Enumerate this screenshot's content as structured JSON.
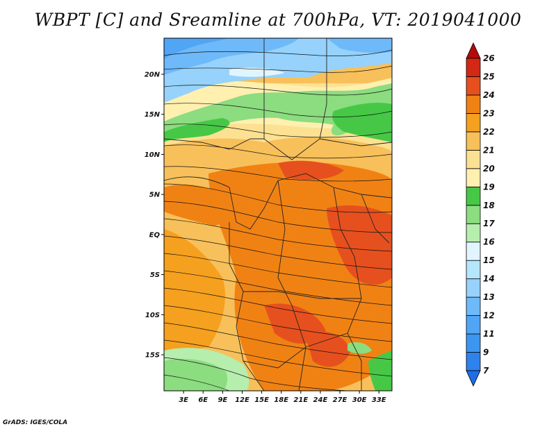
{
  "title": "WBPT [C] and Sreamline at 700hPa, VT: 2019041000",
  "credit": "GrADS: IGES/COLA",
  "map": {
    "lat_range": [
      -19.5,
      24.5
    ],
    "lon_range": [
      0,
      35
    ],
    "lat_ticks": [
      {
        "value": 20,
        "label": "20N"
      },
      {
        "value": 15,
        "label": "15N"
      },
      {
        "value": 10,
        "label": "10N"
      },
      {
        "value": 5,
        "label": "5N"
      },
      {
        "value": 0,
        "label": "EQ"
      },
      {
        "value": -5,
        "label": "5S"
      },
      {
        "value": -10,
        "label": "10S"
      },
      {
        "value": -15,
        "label": "15S"
      }
    ],
    "lon_ticks": [
      {
        "value": 3,
        "label": "3E"
      },
      {
        "value": 6,
        "label": "6E"
      },
      {
        "value": 9,
        "label": "9E"
      },
      {
        "value": 12,
        "label": "12E"
      },
      {
        "value": 15,
        "label": "15E"
      },
      {
        "value": 18,
        "label": "18E"
      },
      {
        "value": 21,
        "label": "21E"
      },
      {
        "value": 24,
        "label": "24E"
      },
      {
        "value": 27,
        "label": "27E"
      },
      {
        "value": 30,
        "label": "30E"
      },
      {
        "value": 33,
        "label": "33E"
      }
    ]
  },
  "colorbar": {
    "levels": [
      "7",
      "9",
      "11",
      "12",
      "13",
      "14",
      "15",
      "16",
      "17",
      "18",
      "19",
      "20",
      "21",
      "22",
      "23",
      "24",
      "25",
      "26"
    ],
    "colors": [
      "#1e6ee6",
      "#2e82ee",
      "#3c96f0",
      "#50a5f5",
      "#6eb9f9",
      "#96d2fb",
      "#b4e6fc",
      "#e0f5ff",
      "#b6eeae",
      "#8cdc80",
      "#46c846",
      "#fff0b0",
      "#fde192",
      "#f8c05a",
      "#f5a01e",
      "#f08214",
      "#e6501e",
      "#d22814",
      "#b40a0a"
    ]
  }
}
